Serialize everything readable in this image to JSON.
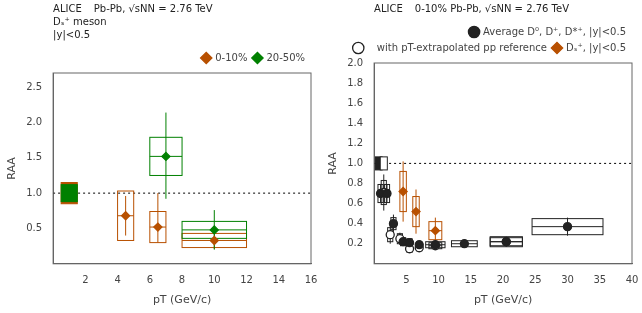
{
  "chart_data": [
    {
      "type": "scatter",
      "xlabel": "pT (GeV/c)",
      "ylabel": "RAA",
      "xlim": [
        0,
        16
      ],
      "ylim": [
        0,
        2.7
      ],
      "xticks": [
        2,
        4,
        6,
        8,
        10,
        12,
        14,
        16
      ],
      "yticks": [
        0.5,
        {
          "value": 1.0,
          "label": "1.0"
        },
        1.5,
        {
          "value": 2.0,
          "label": "2.0"
        },
        2.5
      ],
      "grid": false,
      "legend": "upper right",
      "reference_line": 1.0,
      "annotations": [
        "ALICE",
        "Pb-Pb, √sNN = 2.76 TeV",
        "Dₛ⁺ meson\n|y|<0.5"
      ],
      "series": [
        {
          "name": "0-10%",
          "color": "#b85000",
          "marker": "diamond",
          "norm_box": {
            "x": 1.0,
            "y": 1.0,
            "dx": 0.5,
            "dy": 0.15
          },
          "x": [
            4.5,
            6.5,
            10.0
          ],
          "values": [
            0.68,
            0.52,
            0.33
          ],
          "x_err_lo": [
            0.5,
            0.5,
            2.0
          ],
          "x_err_hi": [
            0.5,
            0.5,
            2.0
          ],
          "y_err_lo": [
            0.28,
            0.22,
            0.12
          ],
          "y_err_hi": [
            0.28,
            0.48,
            0.12
          ],
          "box_dx": [
            0.5,
            0.5,
            2.0
          ],
          "box_dy": [
            0.35,
            0.22,
            0.1
          ]
        },
        {
          "name": "20-50%",
          "color": "#008000",
          "marker": "diamond",
          "norm_box": {
            "x": 1.0,
            "y": 1.0,
            "dx": 0.5,
            "dy": 0.12
          },
          "x": [
            7.0,
            10.0
          ],
          "values": [
            1.52,
            0.48
          ],
          "x_err_lo": [
            1.0,
            2.0
          ],
          "x_err_hi": [
            1.0,
            2.0
          ],
          "y_err_lo": [
            0.6,
            0.28
          ],
          "y_err_hi": [
            0.62,
            0.28
          ],
          "box_dx": [
            1.0,
            2.0
          ],
          "box_dy": [
            0.27,
            0.12
          ]
        }
      ]
    },
    {
      "type": "scatter",
      "xlabel": "pT (GeV/c)",
      "ylabel": "RAA",
      "xlim": [
        0,
        40
      ],
      "ylim": [
        0,
        2.0
      ],
      "xticks": [
        5,
        10,
        15,
        20,
        25,
        30,
        35,
        40
      ],
      "yticks": [
        0.2,
        0.4,
        0.6,
        0.8,
        {
          "value": 1.0,
          "label": "1.0"
        },
        1.2,
        1.4,
        1.6,
        1.8,
        {
          "value": 2.0,
          "label": "2.0"
        }
      ],
      "grid": false,
      "legend": "upper right",
      "reference_line": 1.0,
      "annotations": [
        "ALICE",
        "0-10% Pb-Pb, √sNN = 2.76 TeV"
      ],
      "series": [
        {
          "name": "Average D⁰, D⁺, D*⁺, |y|<0.5",
          "color": "#222222",
          "marker": "circle",
          "norm_box": {
            "x": 0.7,
            "y": 1.0,
            "dx": 0.55,
            "dy": 0.065
          },
          "x": [
            1.0,
            2.0,
            3.0,
            4.5,
            5.5,
            7.0,
            9.5,
            14.0,
            20.5,
            30.0
          ],
          "values": [
            0.7,
            0.7,
            0.4,
            0.22,
            0.21,
            0.19,
            0.19,
            0.2,
            0.22,
            0.37
          ],
          "x_err": [
            0.5,
            0.5,
            0.5,
            0.5,
            0.5,
            0.5,
            1.5,
            2.0,
            2.5,
            5.5
          ],
          "y_err_lo": [
            0.09,
            0.09,
            0.09,
            0.04,
            0.04,
            0.03,
            0.03,
            0.03,
            0.04,
            0.09
          ],
          "y_err_hi": [
            0.09,
            0.09,
            0.09,
            0.04,
            0.04,
            0.03,
            0.03,
            0.03,
            0.04,
            0.09
          ],
          "box_dx": [
            0.4,
            0.4,
            0.4,
            0.4,
            0.4,
            0.4,
            1.5,
            2.0,
            2.5,
            5.5
          ],
          "box_dy": [
            0.09,
            0.09,
            0.06,
            0.04,
            0.04,
            0.03,
            0.03,
            0.03,
            0.04,
            0.08
          ]
        },
        {
          "name": "   with pT-extrapolated pp reference",
          "color": "#222222",
          "marker": "open_circle",
          "norm_box": {
            "x": 1.5,
            "y": 1.0,
            "dx": 0.55,
            "dy": 0.065
          },
          "x": [
            1.5,
            2.5,
            4.0,
            5.5,
            7.0,
            9.5,
            20.5
          ],
          "values": [
            0.71,
            0.29,
            0.25,
            0.15,
            0.16,
            0.18,
            0.22
          ],
          "x_err": [
            0.5,
            0.5,
            0.5,
            0.5,
            0.5,
            1.0,
            2.5
          ],
          "y_err_lo": [
            0.18,
            0.09,
            0.06,
            0.04,
            0.04,
            0.04,
            0.05
          ],
          "y_err_hi": [
            0.18,
            0.09,
            0.06,
            0.04,
            0.04,
            0.04,
            0.05
          ],
          "box_dx": [
            0.4,
            0.4,
            0.4,
            0.4,
            0.4,
            1.0,
            2.5
          ],
          "box_dy": [
            0.12,
            0.07,
            0.05,
            0.035,
            0.03,
            0.03,
            0.05
          ]
        },
        {
          "name": "Dₛ⁺, |y|<0.5",
          "color": "#b85000",
          "marker": "diamond",
          "x": [
            4.5,
            6.5,
            9.5
          ],
          "values": [
            0.72,
            0.52,
            0.33
          ],
          "x_err_lo": [
            0.5,
            0.5,
            1.0
          ],
          "x_err_hi": [
            0.5,
            0.5,
            1.0
          ],
          "y_err_lo": [
            0.3,
            0.22,
            0.13
          ],
          "y_err_hi": [
            0.3,
            0.22,
            0.13
          ],
          "box_dx": [
            0.5,
            0.5,
            1.0
          ],
          "box_dy": [
            0.2,
            0.15,
            0.09
          ]
        }
      ]
    }
  ]
}
